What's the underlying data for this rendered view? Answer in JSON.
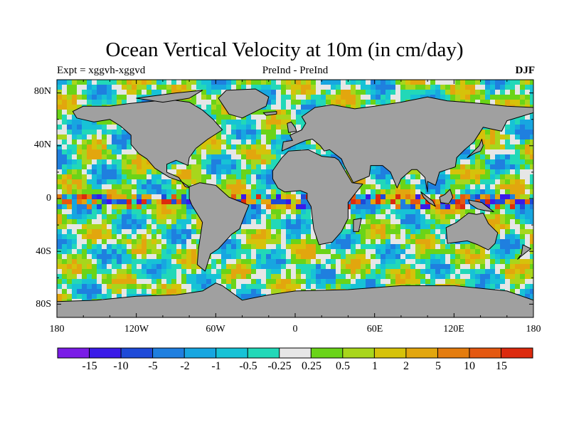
{
  "title": "Ocean Vertical Velocity at 10m (in cm/day)",
  "experiment_label": "Expt = xggvh-xggvd",
  "comparison_label": "PreInd - PreInd",
  "season_label": "DJF",
  "y_axis": {
    "ticks": [
      "80N",
      "40N",
      "0",
      "40S",
      "80S"
    ]
  },
  "x_axis": {
    "ticks": [
      "180",
      "120W",
      "60W",
      "0",
      "60E",
      "120E",
      "180"
    ]
  },
  "colorbar": {
    "colors": [
      "#7a1ce6",
      "#3a1ae8",
      "#1e4ad8",
      "#1f7fdf",
      "#17a6e0",
      "#17c2d6",
      "#22d8b8",
      "#e6e6e6",
      "#6ad418",
      "#a8d61c",
      "#d6c20a",
      "#e2a60e",
      "#e47c0e",
      "#e45810",
      "#dc2a0e"
    ],
    "labels": [
      "-15",
      "-10",
      "-5",
      "-2",
      "-1",
      "-0.5",
      "-0.25",
      "0.25",
      "0.5",
      "1",
      "2",
      "5",
      "10",
      "15"
    ]
  },
  "map": {
    "land_color": "#a0a0a0",
    "coastline_color": "#000000"
  }
}
